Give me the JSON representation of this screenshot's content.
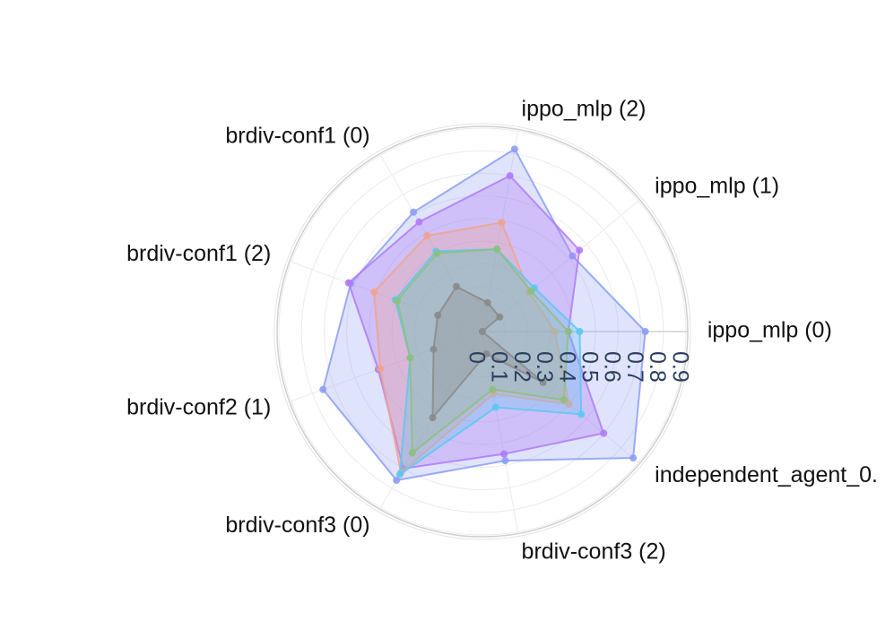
{
  "chart_data": {
    "type": "radar",
    "title": "",
    "categories": [
      "ippo_mlp (0)",
      "ippo_mlp (1)",
      "ippo_mlp (2)",
      "brdiv-conf1 (0)",
      "brdiv-conf1 (2)",
      "brdiv-conf2 (1)",
      "brdiv-conf3 (0)",
      "brdiv-conf3 (2)",
      "independent_agent_0."
    ],
    "radial_ticks": [
      "0",
      "0.1",
      "0.2",
      "0.3",
      "0.4",
      "0.5",
      "0.6",
      "0.7",
      "0.8",
      "0.9"
    ],
    "radial_range": [
      0,
      0.9
    ],
    "grid": true,
    "series": [
      {
        "color": "#8c9ef5",
        "fill_opacity": 0.28,
        "values": [
          0.72,
          0.52,
          0.82,
          0.61,
          0.62,
          0.75,
          0.76,
          0.58,
          0.87
        ]
      },
      {
        "color": "#b07af7",
        "fill_opacity": 0.34,
        "values": [
          0.38,
          0.56,
          0.7,
          0.56,
          0.63,
          0.49,
          0.7,
          0.55,
          0.7
        ]
      },
      {
        "color": "#f0a38c",
        "fill_opacity": 0.3,
        "values": [
          0.32,
          0.27,
          0.49,
          0.49,
          0.51,
          0.48,
          0.72,
          0.28,
          0.5
        ]
      },
      {
        "color": "#5cc8f0",
        "fill_opacity": 0.3,
        "values": [
          0.43,
          0.3,
          0.37,
          0.41,
          0.41,
          0.34,
          0.73,
          0.34,
          0.57
        ]
      },
      {
        "color": "#8fbf7a",
        "fill_opacity": 0.22,
        "values": [
          0.38,
          0.28,
          0.37,
          0.4,
          0.4,
          0.34,
          0.62,
          0.26,
          0.47
        ]
      },
      {
        "color": "#8a8a8a",
        "fill_opacity": 0.28,
        "values": [
          0.0,
          0.1,
          0.13,
          0.23,
          0.21,
          0.23,
          0.44,
          0.1,
          0.35
        ]
      }
    ]
  }
}
